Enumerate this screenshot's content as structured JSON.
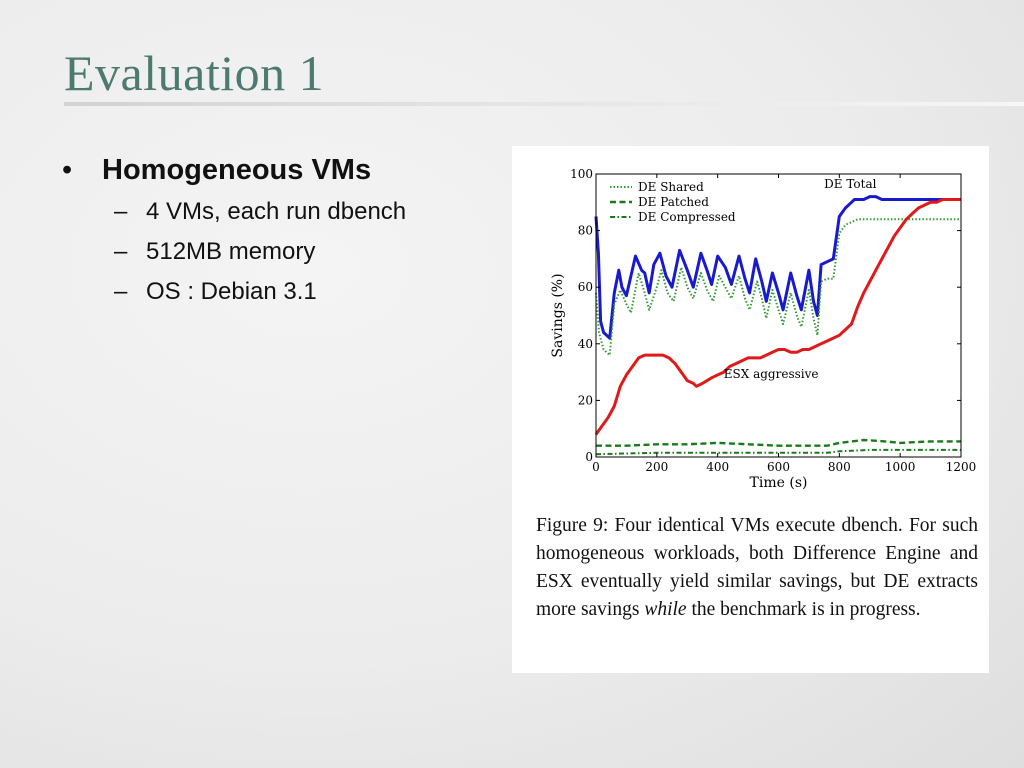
{
  "slide": {
    "title": "Evaluation 1",
    "bullet": {
      "text": "Homogeneous VMs",
      "sub_items": [
        "4 VMs, each run dbench",
        "512MB memory",
        "OS : Debian 3.1"
      ]
    }
  },
  "figure": {
    "caption_before": "Figure 9:  Four identical VMs execute dbench. For such homogeneous workloads, both Difference Engine and ESX eventually yield similar savings, but DE extracts more savings ",
    "caption_em": "while",
    "caption_after": " the benchmark is in progress."
  },
  "chart_data": {
    "type": "line",
    "xlabel": "Time (s)",
    "ylabel": "Savings (%)",
    "xlim": [
      0,
      1200
    ],
    "ylim": [
      0,
      100
    ],
    "xticks": [
      0,
      200,
      400,
      600,
      800,
      1000,
      1200
    ],
    "yticks": [
      0,
      20,
      40,
      60,
      80,
      100
    ],
    "grid": false,
    "legend": {
      "placement": "top-left",
      "entries": [
        "DE Shared",
        "DE Patched",
        "DE Compressed"
      ]
    },
    "annotations": [
      {
        "text": "DE Total",
        "x": 750,
        "y": 95
      },
      {
        "text": "ESX aggressive",
        "x": 420,
        "y": 28
      }
    ],
    "series": [
      {
        "name": "DE Total",
        "color": "#1a1acd",
        "style": "solid",
        "points": [
          [
            0,
            85
          ],
          [
            8,
            72
          ],
          [
            15,
            48
          ],
          [
            25,
            44
          ],
          [
            45,
            42
          ],
          [
            60,
            58
          ],
          [
            75,
            66
          ],
          [
            85,
            60
          ],
          [
            100,
            57
          ],
          [
            130,
            71
          ],
          [
            150,
            66
          ],
          [
            160,
            65
          ],
          [
            175,
            58
          ],
          [
            190,
            68
          ],
          [
            210,
            72
          ],
          [
            230,
            64
          ],
          [
            250,
            60
          ],
          [
            275,
            73
          ],
          [
            300,
            66
          ],
          [
            320,
            60
          ],
          [
            345,
            72
          ],
          [
            365,
            66
          ],
          [
            380,
            61
          ],
          [
            400,
            71
          ],
          [
            425,
            67
          ],
          [
            445,
            61
          ],
          [
            470,
            71
          ],
          [
            490,
            63
          ],
          [
            505,
            58
          ],
          [
            525,
            70
          ],
          [
            545,
            62
          ],
          [
            560,
            55
          ],
          [
            580,
            65
          ],
          [
            600,
            58
          ],
          [
            615,
            52
          ],
          [
            640,
            65
          ],
          [
            660,
            57
          ],
          [
            675,
            52
          ],
          [
            700,
            66
          ],
          [
            715,
            55
          ],
          [
            728,
            50
          ],
          [
            740,
            68
          ],
          [
            760,
            69
          ],
          [
            780,
            70
          ],
          [
            800,
            85
          ],
          [
            820,
            88
          ],
          [
            840,
            90
          ],
          [
            850,
            91
          ],
          [
            860,
            91
          ],
          [
            880,
            91
          ],
          [
            900,
            92
          ],
          [
            920,
            92
          ],
          [
            940,
            91
          ],
          [
            1200,
            91
          ]
        ]
      },
      {
        "name": "DE Shared",
        "color": "#2f9a2f",
        "style": "dotted",
        "points": [
          [
            0,
            58
          ],
          [
            10,
            44
          ],
          [
            25,
            38
          ],
          [
            45,
            36
          ],
          [
            60,
            54
          ],
          [
            80,
            59
          ],
          [
            100,
            54
          ],
          [
            115,
            51
          ],
          [
            140,
            65
          ],
          [
            160,
            58
          ],
          [
            175,
            52
          ],
          [
            200,
            60
          ],
          [
            215,
            66
          ],
          [
            235,
            58
          ],
          [
            255,
            55
          ],
          [
            280,
            67
          ],
          [
            300,
            60
          ],
          [
            320,
            56
          ],
          [
            345,
            65
          ],
          [
            365,
            59
          ],
          [
            385,
            55
          ],
          [
            405,
            64
          ],
          [
            425,
            60
          ],
          [
            445,
            56
          ],
          [
            470,
            64
          ],
          [
            490,
            56
          ],
          [
            505,
            52
          ],
          [
            530,
            62
          ],
          [
            545,
            56
          ],
          [
            560,
            49
          ],
          [
            580,
            59
          ],
          [
            600,
            52
          ],
          [
            615,
            47
          ],
          [
            640,
            58
          ],
          [
            660,
            50
          ],
          [
            675,
            46
          ],
          [
            700,
            59
          ],
          [
            715,
            49
          ],
          [
            728,
            43
          ],
          [
            740,
            62
          ],
          [
            760,
            63
          ],
          [
            780,
            63
          ],
          [
            800,
            79
          ],
          [
            820,
            82
          ],
          [
            840,
            83
          ],
          [
            860,
            84
          ],
          [
            880,
            84
          ],
          [
            1200,
            84
          ]
        ]
      },
      {
        "name": "ESX aggressive",
        "color": "#e01a1a",
        "style": "solid",
        "points": [
          [
            0,
            8
          ],
          [
            20,
            11
          ],
          [
            40,
            14
          ],
          [
            60,
            18
          ],
          [
            80,
            25
          ],
          [
            100,
            29
          ],
          [
            120,
            32
          ],
          [
            140,
            35
          ],
          [
            160,
            36
          ],
          [
            180,
            36
          ],
          [
            200,
            36
          ],
          [
            220,
            36
          ],
          [
            240,
            35
          ],
          [
            260,
            33
          ],
          [
            280,
            30
          ],
          [
            300,
            27
          ],
          [
            320,
            26
          ],
          [
            330,
            25
          ],
          [
            350,
            26
          ],
          [
            380,
            28
          ],
          [
            400,
            29
          ],
          [
            420,
            30
          ],
          [
            440,
            32
          ],
          [
            460,
            33
          ],
          [
            480,
            34
          ],
          [
            500,
            35
          ],
          [
            520,
            35
          ],
          [
            540,
            35
          ],
          [
            560,
            36
          ],
          [
            580,
            37
          ],
          [
            600,
            38
          ],
          [
            620,
            38
          ],
          [
            640,
            37
          ],
          [
            660,
            37
          ],
          [
            680,
            38
          ],
          [
            700,
            38
          ],
          [
            720,
            39
          ],
          [
            740,
            40
          ],
          [
            760,
            41
          ],
          [
            780,
            42
          ],
          [
            800,
            43
          ],
          [
            820,
            45
          ],
          [
            840,
            47
          ],
          [
            860,
            53
          ],
          [
            880,
            58
          ],
          [
            900,
            62
          ],
          [
            920,
            66
          ],
          [
            940,
            70
          ],
          [
            960,
            74
          ],
          [
            980,
            78
          ],
          [
            1000,
            81
          ],
          [
            1020,
            84
          ],
          [
            1040,
            86
          ],
          [
            1060,
            88
          ],
          [
            1080,
            89
          ],
          [
            1100,
            90
          ],
          [
            1120,
            90
          ],
          [
            1140,
            91
          ],
          [
            1160,
            91
          ],
          [
            1180,
            91
          ],
          [
            1200,
            91
          ]
        ]
      },
      {
        "name": "DE Patched",
        "color": "#1a7a1a",
        "style": "dashed",
        "points": [
          [
            0,
            4
          ],
          [
            100,
            4
          ],
          [
            200,
            4.5
          ],
          [
            300,
            4.5
          ],
          [
            400,
            5
          ],
          [
            500,
            4.5
          ],
          [
            600,
            4
          ],
          [
            700,
            4
          ],
          [
            760,
            4
          ],
          [
            800,
            5
          ],
          [
            880,
            6
          ],
          [
            950,
            5.5
          ],
          [
            1000,
            5
          ],
          [
            1100,
            5.5
          ],
          [
            1200,
            5.5
          ]
        ]
      },
      {
        "name": "DE Compressed",
        "color": "#1a7a1a",
        "style": "dashdot",
        "points": [
          [
            0,
            1
          ],
          [
            200,
            1.5
          ],
          [
            400,
            1.5
          ],
          [
            600,
            1.5
          ],
          [
            760,
            1.5
          ],
          [
            800,
            2
          ],
          [
            900,
            2.5
          ],
          [
            1000,
            2.5
          ],
          [
            1200,
            2.5
          ]
        ]
      }
    ]
  }
}
